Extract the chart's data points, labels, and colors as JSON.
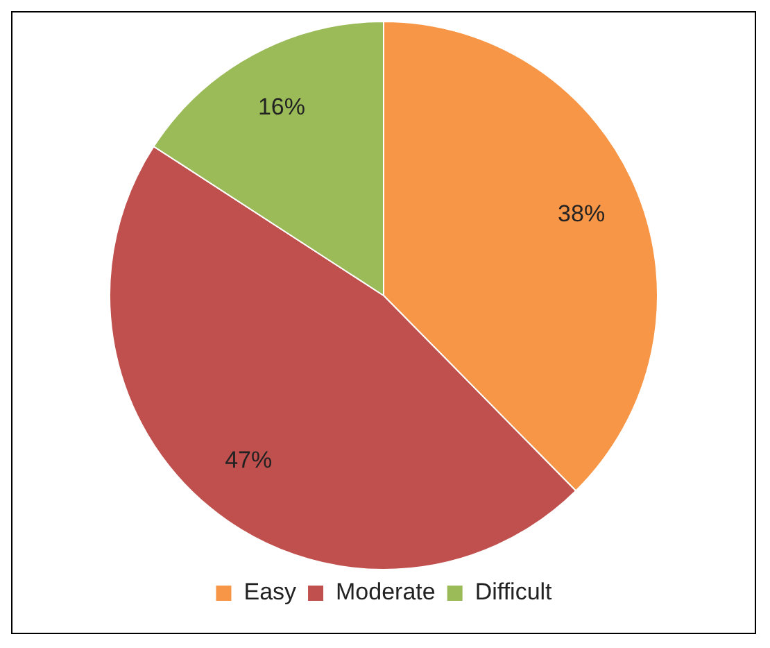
{
  "chart_data": {
    "type": "pie",
    "categories": [
      "Easy",
      "Moderate",
      "Difficult"
    ],
    "values": [
      38,
      47,
      16
    ],
    "colors": [
      "#f79646",
      "#c0504d",
      "#9bbb59"
    ],
    "value_labels": [
      "38%",
      "47%",
      "16%"
    ],
    "legend": "bottom"
  }
}
